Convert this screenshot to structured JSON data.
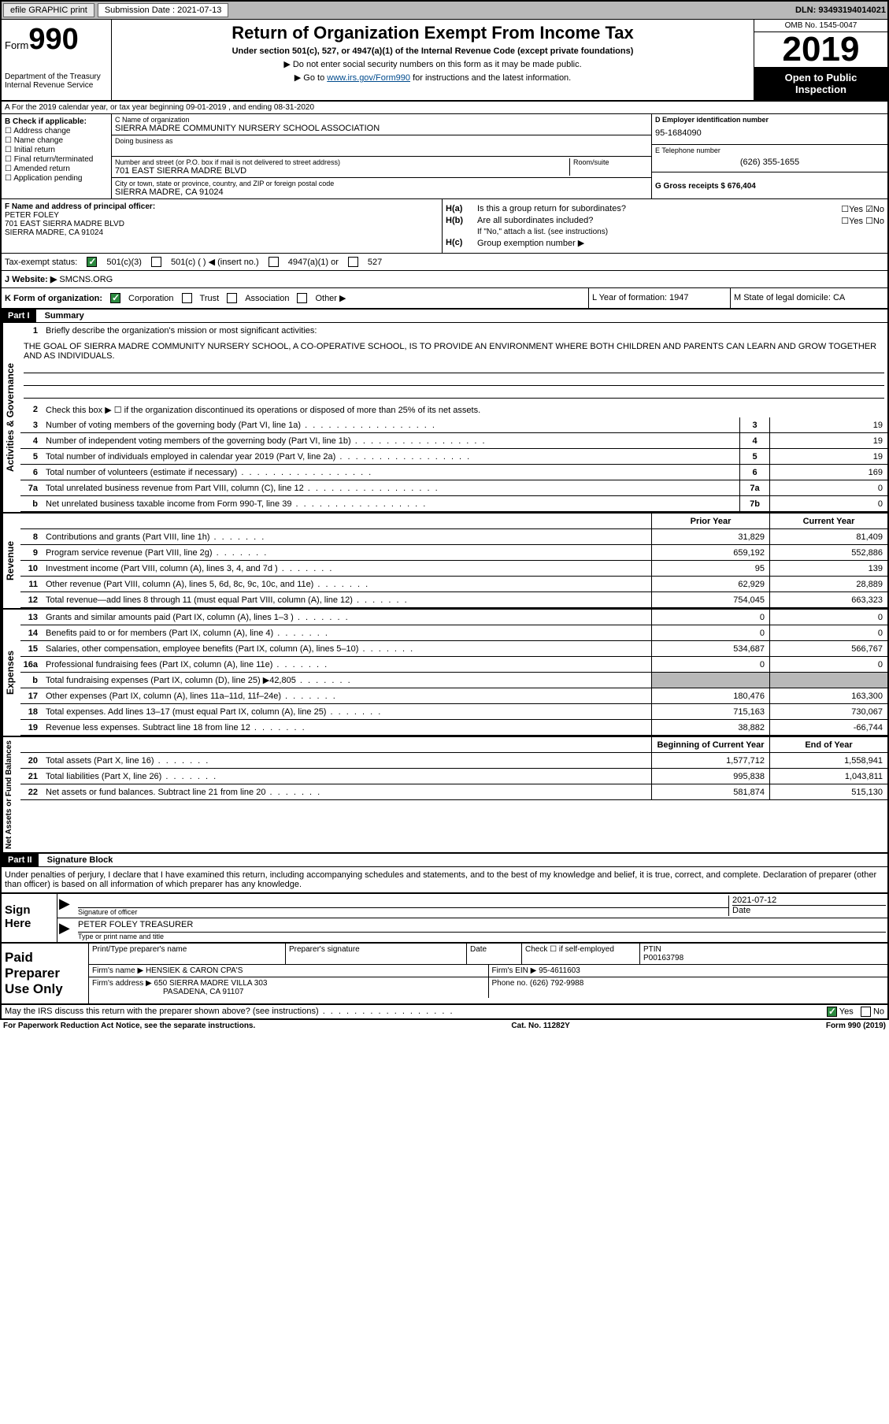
{
  "top": {
    "efile": "efile GRAPHIC print",
    "submission_label": "Submission Date : 2021-07-13",
    "dln": "DLN: 93493194014021"
  },
  "header": {
    "form_prefix": "Form",
    "form_num": "990",
    "dept": "Department of the Treasury\nInternal Revenue Service",
    "title": "Return of Organization Exempt From Income Tax",
    "subtitle": "Under section 501(c), 527, or 4947(a)(1) of the Internal Revenue Code (except private foundations)",
    "note1": "▶ Do not enter social security numbers on this form as it may be made public.",
    "note2_pre": "▶ Go to ",
    "note2_link": "www.irs.gov/Form990",
    "note2_post": " for instructions and the latest information.",
    "omb": "OMB No. 1545-0047",
    "year": "2019",
    "open": "Open to Public Inspection"
  },
  "row_a": "A For the 2019 calendar year, or tax year beginning 09-01-2019   , and ending 08-31-2020",
  "section_b": {
    "b_label": "B Check if applicable:",
    "checks": [
      "Address change",
      "Name change",
      "Initial return",
      "Final return/terminated",
      "Amended return",
      "Application pending"
    ],
    "c_label": "C Name of organization",
    "org_name": "SIERRA MADRE COMMUNITY NURSERY SCHOOL ASSOCIATION",
    "dba": "Doing business as",
    "addr_label": "Number and street (or P.O. box if mail is not delivered to street address)",
    "room": "Room/suite",
    "addr": "701 EAST SIERRA MADRE BLVD",
    "city_label": "City or town, state or province, country, and ZIP or foreign postal code",
    "city": "SIERRA MADRE, CA  91024",
    "d_label": "D Employer identification number",
    "ein": "95-1684090",
    "e_label": "E Telephone number",
    "phone": "(626) 355-1655",
    "g_label": "G Gross receipts $ 676,404"
  },
  "section_f": {
    "f_label": "F  Name and address of principal officer:",
    "officer": "PETER FOLEY\n701 EAST SIERRA MADRE BLVD\nSIERRA MADRE, CA  91024",
    "ha": "Is this a group return for subordinates?",
    "hb": "Are all subordinates included?",
    "hb_note": "If \"No,\" attach a list. (see instructions)",
    "hc": "Group exemption number ▶"
  },
  "tax_status": {
    "label": "Tax-exempt status:",
    "opt1": "501(c)(3)",
    "opt2": "501(c) (  ) ◀ (insert no.)",
    "opt3": "4947(a)(1) or",
    "opt4": "527"
  },
  "website": {
    "label": "J   Website: ▶",
    "value": "SMCNS.ORG"
  },
  "k_row": {
    "k": "K Form of organization:",
    "opts": [
      "Corporation",
      "Trust",
      "Association",
      "Other ▶"
    ],
    "l": "L Year of formation: 1947",
    "m": "M State of legal domicile: CA"
  },
  "part1": {
    "header": "Part I",
    "title": "Summary",
    "line1_label": "Briefly describe the organization's mission or most significant activities:",
    "mission": "THE GOAL OF SIERRA MADRE COMMUNITY NURSERY SCHOOL, A CO-OPERATIVE SCHOOL, IS TO PROVIDE AN ENVIRONMENT WHERE BOTH CHILDREN AND PARENTS CAN LEARN AND GROW TOGETHER AND AS INDIVIDUALS.",
    "line2": "Check this box ▶ ☐  if the organization discontinued its operations or disposed of more than 25% of its net assets.",
    "gov_lines": [
      {
        "n": "3",
        "d": "Number of voting members of the governing body (Part VI, line 1a)",
        "b": "3",
        "v": "19"
      },
      {
        "n": "4",
        "d": "Number of independent voting members of the governing body (Part VI, line 1b)",
        "b": "4",
        "v": "19"
      },
      {
        "n": "5",
        "d": "Total number of individuals employed in calendar year 2019 (Part V, line 2a)",
        "b": "5",
        "v": "19"
      },
      {
        "n": "6",
        "d": "Total number of volunteers (estimate if necessary)",
        "b": "6",
        "v": "169"
      },
      {
        "n": "7a",
        "d": "Total unrelated business revenue from Part VIII, column (C), line 12",
        "b": "7a",
        "v": "0"
      },
      {
        "n": "b",
        "d": "Net unrelated business taxable income from Form 990-T, line 39",
        "b": "7b",
        "v": "0"
      }
    ],
    "col_headers": {
      "prior": "Prior Year",
      "current": "Current Year"
    },
    "revenue_lines": [
      {
        "n": "8",
        "d": "Contributions and grants (Part VIII, line 1h)",
        "p": "31,829",
        "c": "81,409"
      },
      {
        "n": "9",
        "d": "Program service revenue (Part VIII, line 2g)",
        "p": "659,192",
        "c": "552,886"
      },
      {
        "n": "10",
        "d": "Investment income (Part VIII, column (A), lines 3, 4, and 7d )",
        "p": "95",
        "c": "139"
      },
      {
        "n": "11",
        "d": "Other revenue (Part VIII, column (A), lines 5, 6d, 8c, 9c, 10c, and 11e)",
        "p": "62,929",
        "c": "28,889"
      },
      {
        "n": "12",
        "d": "Total revenue—add lines 8 through 11 (must equal Part VIII, column (A), line 12)",
        "p": "754,045",
        "c": "663,323"
      }
    ],
    "expense_lines": [
      {
        "n": "13",
        "d": "Grants and similar amounts paid (Part IX, column (A), lines 1–3 )",
        "p": "0",
        "c": "0"
      },
      {
        "n": "14",
        "d": "Benefits paid to or for members (Part IX, column (A), line 4)",
        "p": "0",
        "c": "0"
      },
      {
        "n": "15",
        "d": "Salaries, other compensation, employee benefits (Part IX, column (A), lines 5–10)",
        "p": "534,687",
        "c": "566,767"
      },
      {
        "n": "16a",
        "d": "Professional fundraising fees (Part IX, column (A), line 11e)",
        "p": "0",
        "c": "0"
      },
      {
        "n": "b",
        "d": "Total fundraising expenses (Part IX, column (D), line 25) ▶42,805",
        "p": "",
        "c": "",
        "shaded": true
      },
      {
        "n": "17",
        "d": "Other expenses (Part IX, column (A), lines 11a–11d, 11f–24e)",
        "p": "180,476",
        "c": "163,300"
      },
      {
        "n": "18",
        "d": "Total expenses. Add lines 13–17 (must equal Part IX, column (A), line 25)",
        "p": "715,163",
        "c": "730,067"
      },
      {
        "n": "19",
        "d": "Revenue less expenses. Subtract line 18 from line 12",
        "p": "38,882",
        "c": "-66,744"
      }
    ],
    "net_headers": {
      "begin": "Beginning of Current Year",
      "end": "End of Year"
    },
    "net_lines": [
      {
        "n": "20",
        "d": "Total assets (Part X, line 16)",
        "p": "1,577,712",
        "c": "1,558,941"
      },
      {
        "n": "21",
        "d": "Total liabilities (Part X, line 26)",
        "p": "995,838",
        "c": "1,043,811"
      },
      {
        "n": "22",
        "d": "Net assets or fund balances. Subtract line 21 from line 20",
        "p": "581,874",
        "c": "515,130"
      }
    ]
  },
  "part2": {
    "header": "Part II",
    "title": "Signature Block",
    "penalty": "Under penalties of perjury, I declare that I have examined this return, including accompanying schedules and statements, and to the best of my knowledge and belief, it is true, correct, and complete. Declaration of preparer (other than officer) is based on all information of which preparer has any knowledge.",
    "sign_here": "Sign Here",
    "sig_officer": "Signature of officer",
    "date_label": "Date",
    "sig_date": "2021-07-12",
    "officer_name": "PETER FOLEY TREASURER",
    "type_label": "Type or print name and title",
    "paid_label": "Paid Preparer Use Only",
    "prep_name_label": "Print/Type preparer's name",
    "prep_sig_label": "Preparer's signature",
    "check_self": "Check ☐ if self-employed",
    "ptin_label": "PTIN",
    "ptin": "P00163798",
    "firm_name_label": "Firm's name   ▶",
    "firm_name": "HENSIEK & CARON CPA'S",
    "firm_ein_label": "Firm's EIN ▶",
    "firm_ein": "95-4611603",
    "firm_addr_label": "Firm's address ▶",
    "firm_addr": "650 SIERRA MADRE VILLA 303",
    "firm_city": "PASADENA, CA  91107",
    "phone_label": "Phone no.",
    "firm_phone": "(626) 792-9988",
    "discuss": "May the IRS discuss this return with the preparer shown above? (see instructions)",
    "yes": "Yes",
    "no": "No"
  },
  "footer": {
    "paperwork": "For Paperwork Reduction Act Notice, see the separate instructions.",
    "cat": "Cat. No. 11282Y",
    "form": "Form 990 (2019)"
  },
  "side_labels": {
    "gov": "Activities & Governance",
    "rev": "Revenue",
    "exp": "Expenses",
    "net": "Net Assets or Fund Balances"
  }
}
